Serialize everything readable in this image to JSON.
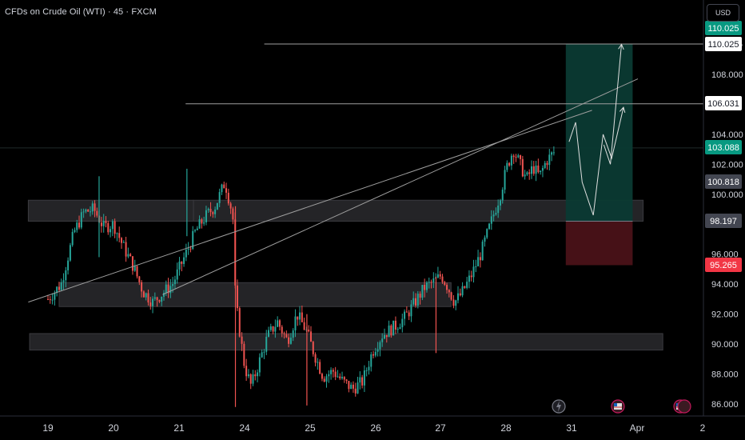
{
  "header": {
    "symbol_title": "CFDs on Crude Oil (WTI) · 45 · FXCM",
    "currency_button": "USD"
  },
  "colors": {
    "background": "#000000",
    "up_candle": "#26a69a",
    "down_candle": "#ef5350",
    "profit_zone": "#0b3a33",
    "loss_zone": "#4a1218",
    "zone_box": "#2a2a2e",
    "line": "#bdbdbd",
    "label_green": "#089981",
    "label_red": "#f23645",
    "label_grey": "#434651"
  },
  "chart_data": {
    "type": "candlestick",
    "title": "CFDs on Crude Oil (WTI) · 45 · FXCM",
    "y_axis": {
      "ticks": [
        "110.025",
        "108.000",
        "104.000",
        "102.000",
        "100.000",
        "96.000",
        "94.000",
        "92.000",
        "90.000",
        "88.000",
        "86.000"
      ],
      "range": [
        85.5,
        111
      ]
    },
    "x_axis": {
      "ticks": [
        "19",
        "20",
        "21",
        "24",
        "25",
        "26",
        "27",
        "28",
        "31",
        "Apr",
        "2"
      ]
    },
    "price_labels": [
      {
        "text": "110.025",
        "style": "green"
      },
      {
        "text": "110.025",
        "style": "white"
      },
      {
        "text": "106.031",
        "style": "white"
      },
      {
        "text": "103.088",
        "style": "green"
      },
      {
        "text": "100.818",
        "style": "grey"
      },
      {
        "text": "98.197",
        "style": "grey"
      },
      {
        "text": "95.265",
        "style": "red"
      }
    ],
    "close_path": [
      {
        "t": 0.0,
        "p": 93.0
      },
      {
        "t": 0.2,
        "p": 94.0
      },
      {
        "t": 0.4,
        "p": 97.5
      },
      {
        "t": 0.55,
        "p": 98.8
      },
      {
        "t": 0.7,
        "p": 99.0
      },
      {
        "t": 0.85,
        "p": 97.8
      },
      {
        "t": 1.0,
        "p": 98.0
      },
      {
        "t": 1.15,
        "p": 96.5
      },
      {
        "t": 1.3,
        "p": 95.2
      },
      {
        "t": 1.45,
        "p": 93.5
      },
      {
        "t": 1.6,
        "p": 92.8
      },
      {
        "t": 1.75,
        "p": 93.4
      },
      {
        "t": 1.9,
        "p": 94.0
      },
      {
        "t": 2.05,
        "p": 95.5
      },
      {
        "t": 2.25,
        "p": 97.5
      },
      {
        "t": 2.4,
        "p": 98.5
      },
      {
        "t": 2.55,
        "p": 99.2
      },
      {
        "t": 2.7,
        "p": 100.8
      },
      {
        "t": 2.82,
        "p": 98.6
      },
      {
        "t": 2.86,
        "p": 93.0
      },
      {
        "t": 2.92,
        "p": 91.0
      },
      {
        "t": 3.0,
        "p": 88.5
      },
      {
        "t": 3.1,
        "p": 87.2
      },
      {
        "t": 3.2,
        "p": 88.5
      },
      {
        "t": 3.35,
        "p": 90.5
      },
      {
        "t": 3.5,
        "p": 91.5
      },
      {
        "t": 3.65,
        "p": 90.2
      },
      {
        "t": 3.8,
        "p": 92.0
      },
      {
        "t": 3.95,
        "p": 90.8
      },
      {
        "t": 4.05,
        "p": 89.5
      },
      {
        "t": 4.2,
        "p": 87.8
      },
      {
        "t": 4.35,
        "p": 88.2
      },
      {
        "t": 4.5,
        "p": 87.5
      },
      {
        "t": 4.65,
        "p": 87.0
      },
      {
        "t": 4.8,
        "p": 87.5
      },
      {
        "t": 4.95,
        "p": 89.5
      },
      {
        "t": 5.1,
        "p": 90.6
      },
      {
        "t": 5.3,
        "p": 91.2
      },
      {
        "t": 5.45,
        "p": 91.8
      },
      {
        "t": 5.6,
        "p": 92.8
      },
      {
        "t": 5.75,
        "p": 93.8
      },
      {
        "t": 5.9,
        "p": 94.2
      },
      {
        "t": 6.0,
        "p": 94.6
      },
      {
        "t": 6.1,
        "p": 93.8
      },
      {
        "t": 6.2,
        "p": 92.8
      },
      {
        "t": 6.3,
        "p": 93.3
      },
      {
        "t": 6.45,
        "p": 94.5
      },
      {
        "t": 6.6,
        "p": 96.0
      },
      {
        "t": 6.75,
        "p": 98.0
      },
      {
        "t": 6.9,
        "p": 100.0
      },
      {
        "t": 7.0,
        "p": 101.8
      },
      {
        "t": 7.1,
        "p": 103.0
      },
      {
        "t": 7.2,
        "p": 102.0
      },
      {
        "t": 7.3,
        "p": 101.0
      },
      {
        "t": 7.4,
        "p": 101.8
      },
      {
        "t": 7.5,
        "p": 101.2
      },
      {
        "t": 7.6,
        "p": 102.2
      },
      {
        "t": 7.72,
        "p": 102.8
      }
    ],
    "zones": [
      {
        "t0": -0.28,
        "t1": 9.38,
        "p0": 89.6,
        "p1": 90.7
      },
      {
        "t0": 0.17,
        "t1": 6.15,
        "p0": 92.5,
        "p1": 94.1
      },
      {
        "t0": -0.3,
        "t1": 2.22,
        "p0": 98.2,
        "p1": 99.6
      },
      {
        "t0": 2.22,
        "t1": 9.08,
        "p0": 98.2,
        "p1": 99.6
      }
    ],
    "position": {
      "t0": 7.9,
      "t1": 8.92,
      "entry": 98.197,
      "target": 110.025,
      "stop": 95.265
    },
    "horizontal_levels": [
      {
        "t0": 3.3,
        "price": 110.025
      },
      {
        "t0": 2.1,
        "price": 106.031
      }
    ],
    "trendlines": [
      {
        "t0": -0.3,
        "p0": 92.8,
        "t1": 8.3,
        "p1": 105.6
      },
      {
        "t0": 1.75,
        "p0": 93.3,
        "t1": 9.0,
        "p1": 107.7
      }
    ],
    "projection": [
      {
        "t": 7.95,
        "p": 103.5
      },
      {
        "t": 8.05,
        "p": 104.8
      },
      {
        "t": 8.15,
        "p": 100.8
      },
      {
        "t": 8.32,
        "p": 98.6
      },
      {
        "t": 8.47,
        "p": 104.0
      },
      {
        "t": 8.6,
        "p": 102.4
      },
      {
        "t": 8.78,
        "p": 105.8
      }
    ],
    "projection2": [
      {
        "t": 8.48,
        "p": 103.3
      },
      {
        "t": 8.58,
        "p": 102.0
      },
      {
        "t": 8.75,
        "p": 110.0
      }
    ]
  }
}
